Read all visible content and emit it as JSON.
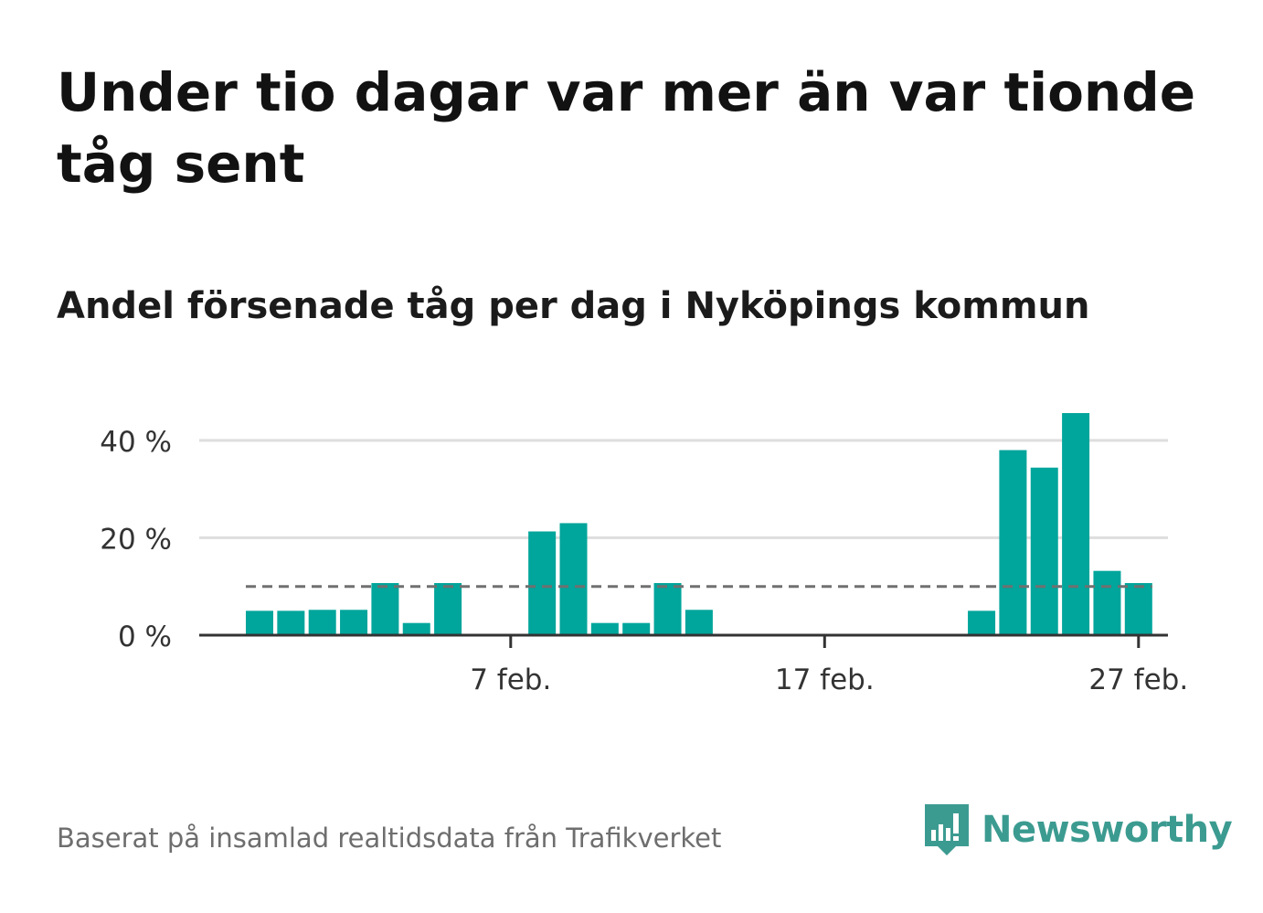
{
  "header": {
    "title": "Under tio dagar var mer än var tionde tåg sent",
    "subtitle": "Andel försenade tåg per dag i Nyköpings kommun"
  },
  "footer": {
    "source": "Baserat på insamlad realtidsdata från Trafikverket",
    "brand": "Newsworthy"
  },
  "colors": {
    "bar": "#00a59b",
    "reference_line": "#707070",
    "grid": "#dedede",
    "axis": "#333333",
    "logo": "#3c9b91"
  },
  "icons": {
    "logo": "bar-chart-speech-bubble-icon"
  },
  "chart_data": {
    "type": "bar",
    "x": [
      "2024-01-30",
      "2024-01-31",
      "2024-02-01",
      "2024-02-02",
      "2024-02-03",
      "2024-02-04",
      "2024-02-05",
      "2024-02-06",
      "2024-02-07",
      "2024-02-08",
      "2024-02-09",
      "2024-02-10",
      "2024-02-11",
      "2024-02-12",
      "2024-02-13",
      "2024-02-14",
      "2024-02-15",
      "2024-02-16",
      "2024-02-17",
      "2024-02-18",
      "2024-02-19",
      "2024-02-20",
      "2024-02-21",
      "2024-02-22",
      "2024-02-23",
      "2024-02-24",
      "2024-02-25",
      "2024-02-26",
      "2024-02-27",
      "2024-02-28"
    ],
    "values": [
      5,
      5,
      5.2,
      5.2,
      10.7,
      2.5,
      10.7,
      0,
      0,
      21.3,
      23,
      2.5,
      2.5,
      10.7,
      5.2,
      0,
      0,
      0,
      0,
      0,
      0,
      0,
      0,
      5,
      38,
      34.4,
      45.6,
      13.2,
      10.7,
      null
    ],
    "reference_line": 10,
    "ylim": [
      0,
      45.6
    ],
    "yticks": [
      0,
      20,
      40
    ],
    "ytick_labels": [
      "0 %",
      "20 %",
      "40 %"
    ],
    "xticks": [
      "2024-02-07",
      "2024-02-17",
      "2024-02-27"
    ],
    "xtick_labels": [
      "7 feb.",
      "17 feb.",
      "27 feb."
    ],
    "xlabel": "",
    "ylabel": "",
    "grid": true,
    "legend": "none"
  }
}
